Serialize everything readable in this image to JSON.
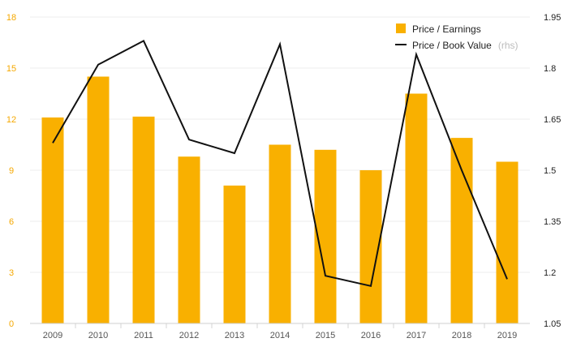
{
  "chart_data": {
    "type": "bar",
    "categories": [
      "2009",
      "2010",
      "2011",
      "2012",
      "2013",
      "2014",
      "2015",
      "2016",
      "2017",
      "2018",
      "2019"
    ],
    "series": [
      {
        "name": "Price / Earnings",
        "type": "bar",
        "axis": "left",
        "color": "#f9b000",
        "values": [
          12.1,
          14.5,
          12.15,
          9.8,
          8.1,
          10.5,
          10.2,
          9.0,
          13.5,
          10.9,
          9.5
        ]
      },
      {
        "name": "Price / Book Value",
        "name_suffix": "(rhs)",
        "type": "line",
        "axis": "right",
        "color": "#111111",
        "values": [
          1.58,
          1.81,
          1.88,
          1.59,
          1.55,
          1.87,
          1.19,
          1.16,
          1.84,
          1.5,
          1.18
        ]
      }
    ],
    "y_left": {
      "range": [
        0,
        18
      ],
      "ticks": [
        "0",
        "3",
        "6",
        "9",
        "12",
        "15",
        "18"
      ],
      "color": "#f5a800"
    },
    "y_right": {
      "range": [
        1.05,
        1.95
      ],
      "ticks": [
        "1.05",
        "1.2",
        "1.35",
        "1.5",
        "1.65",
        "1.8",
        "1.95"
      ],
      "color": "#222222"
    },
    "grid": true,
    "legend_position": "top-right",
    "title": "",
    "xlabel": "",
    "ylabel": ""
  }
}
